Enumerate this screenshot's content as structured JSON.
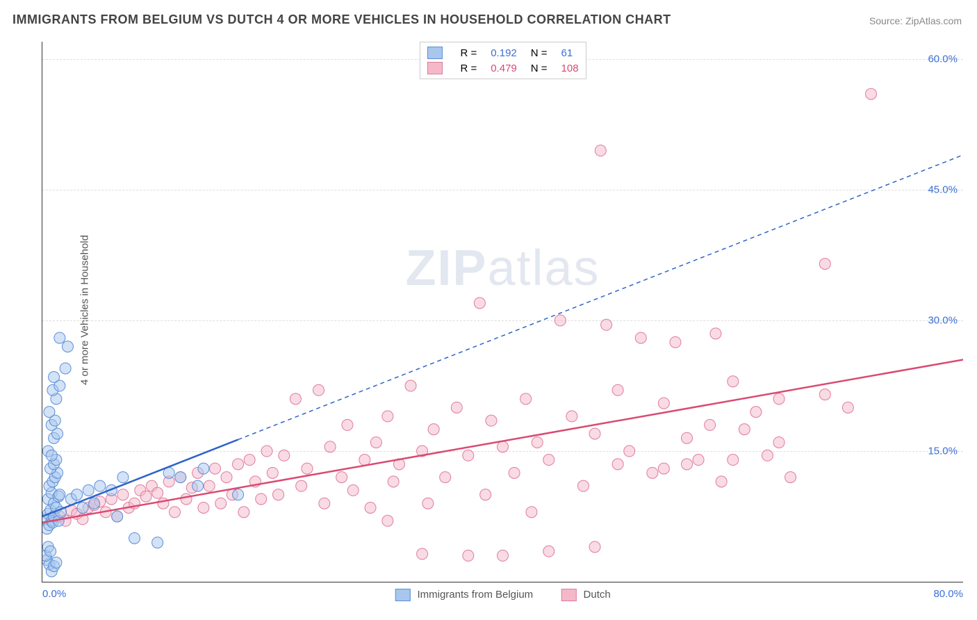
{
  "title": "IMMIGRANTS FROM BELGIUM VS DUTCH 4 OR MORE VEHICLES IN HOUSEHOLD CORRELATION CHART",
  "source_label": "Source:",
  "source_name": "ZipAtlas.com",
  "ylabel": "4 or more Vehicles in Household",
  "watermark_bold": "ZIP",
  "watermark_rest": "atlas",
  "chart": {
    "type": "scatter",
    "background_color": "#ffffff",
    "grid_color": "#dddddd",
    "axis_color": "#333333",
    "tick_color": "#3b6fd6",
    "xlim": [
      0,
      80
    ],
    "ylim": [
      0,
      62
    ],
    "xticks": [
      {
        "value": 0,
        "label": "0.0%"
      },
      {
        "value": 80,
        "label": "80.0%"
      }
    ],
    "yticks": [
      {
        "value": 15,
        "label": "15.0%"
      },
      {
        "value": 30,
        "label": "30.0%"
      },
      {
        "value": 45,
        "label": "45.0%"
      },
      {
        "value": 60,
        "label": "60.0%"
      }
    ],
    "marker_radius": 8,
    "marker_opacity": 0.5,
    "series": [
      {
        "name": "Immigrants from Belgium",
        "key": "belgium",
        "color_fill": "#a8c6ee",
        "color_stroke": "#5a8fd6",
        "line_color": "#2e63c8",
        "line_width": 2.5,
        "line_dash_after_x": 17,
        "R_label": "R =",
        "R": "0.192",
        "N_label": "N =",
        "N": "61",
        "regression": {
          "x1": 0,
          "y1": 7.5,
          "x2": 80,
          "y2": 49
        },
        "points": [
          [
            0.3,
            7.2
          ],
          [
            0.4,
            6.1
          ],
          [
            0.5,
            7.8
          ],
          [
            0.6,
            6.5
          ],
          [
            0.7,
            8.2
          ],
          [
            0.8,
            7.0
          ],
          [
            0.9,
            6.8
          ],
          [
            1.0,
            7.5
          ],
          [
            0.4,
            2.5
          ],
          [
            0.6,
            2.0
          ],
          [
            0.8,
            1.2
          ],
          [
            1.0,
            1.8
          ],
          [
            1.2,
            2.2
          ],
          [
            0.3,
            3.0
          ],
          [
            0.5,
            4.0
          ],
          [
            0.7,
            3.5
          ],
          [
            0.5,
            9.5
          ],
          [
            0.8,
            10.2
          ],
          [
            1.0,
            9.0
          ],
          [
            1.2,
            8.5
          ],
          [
            1.4,
            9.8
          ],
          [
            0.6,
            11.0
          ],
          [
            0.9,
            11.5
          ],
          [
            1.1,
            12.0
          ],
          [
            1.3,
            12.5
          ],
          [
            0.7,
            13.0
          ],
          [
            1.0,
            13.5
          ],
          [
            1.2,
            14.0
          ],
          [
            0.5,
            15.0
          ],
          [
            0.8,
            14.5
          ],
          [
            1.5,
            10.0
          ],
          [
            1.0,
            16.5
          ],
          [
            1.3,
            17.0
          ],
          [
            0.8,
            18.0
          ],
          [
            1.1,
            18.5
          ],
          [
            0.6,
            19.5
          ],
          [
            1.4,
            7.0
          ],
          [
            1.6,
            8.0
          ],
          [
            1.2,
            21.0
          ],
          [
            0.9,
            22.0
          ],
          [
            1.5,
            22.5
          ],
          [
            1.0,
            23.5
          ],
          [
            2.0,
            24.5
          ],
          [
            2.2,
            27.0
          ],
          [
            1.5,
            28.0
          ],
          [
            2.5,
            9.5
          ],
          [
            3.0,
            10.0
          ],
          [
            3.5,
            8.5
          ],
          [
            4.0,
            10.5
          ],
          [
            4.5,
            9.0
          ],
          [
            5.0,
            11.0
          ],
          [
            6.0,
            10.5
          ],
          [
            6.5,
            7.5
          ],
          [
            7.0,
            12.0
          ],
          [
            8.0,
            5.0
          ],
          [
            10.0,
            4.5
          ],
          [
            11.0,
            12.5
          ],
          [
            12.0,
            12.0
          ],
          [
            13.5,
            11.0
          ],
          [
            14.0,
            13.0
          ],
          [
            17.0,
            10.0
          ]
        ]
      },
      {
        "name": "Dutch",
        "key": "dutch",
        "color_fill": "#f4b8c9",
        "color_stroke": "#e07a9c",
        "line_color": "#d94a72",
        "line_width": 2.5,
        "line_dash_after_x": 999,
        "R_label": "R =",
        "R": "0.479",
        "N_label": "N =",
        "N": "108",
        "regression": {
          "x1": 0,
          "y1": 6.8,
          "x2": 80,
          "y2": 25.5
        },
        "points": [
          [
            1.5,
            7.5
          ],
          [
            2.0,
            7.0
          ],
          [
            2.5,
            8.2
          ],
          [
            3.0,
            7.8
          ],
          [
            3.5,
            7.2
          ],
          [
            4.0,
            8.5
          ],
          [
            4.5,
            8.8
          ],
          [
            5.0,
            9.2
          ],
          [
            5.5,
            8.0
          ],
          [
            6.0,
            9.5
          ],
          [
            6.5,
            7.5
          ],
          [
            7.0,
            10.0
          ],
          [
            7.5,
            8.5
          ],
          [
            8.0,
            9.0
          ],
          [
            8.5,
            10.5
          ],
          [
            9.0,
            9.8
          ],
          [
            9.5,
            11.0
          ],
          [
            10.0,
            10.2
          ],
          [
            10.5,
            9.0
          ],
          [
            11.0,
            11.5
          ],
          [
            11.5,
            8.0
          ],
          [
            12.0,
            12.0
          ],
          [
            12.5,
            9.5
          ],
          [
            13.0,
            10.8
          ],
          [
            13.5,
            12.5
          ],
          [
            14.0,
            8.5
          ],
          [
            14.5,
            11.0
          ],
          [
            15.0,
            13.0
          ],
          [
            15.5,
            9.0
          ],
          [
            16.0,
            12.0
          ],
          [
            16.5,
            10.0
          ],
          [
            17.0,
            13.5
          ],
          [
            17.5,
            8.0
          ],
          [
            18.0,
            14.0
          ],
          [
            18.5,
            11.5
          ],
          [
            19.0,
            9.5
          ],
          [
            19.5,
            15.0
          ],
          [
            20.0,
            12.5
          ],
          [
            20.5,
            10.0
          ],
          [
            21.0,
            14.5
          ],
          [
            22.0,
            21.0
          ],
          [
            22.5,
            11.0
          ],
          [
            23.0,
            13.0
          ],
          [
            24.0,
            22.0
          ],
          [
            24.5,
            9.0
          ],
          [
            25.0,
            15.5
          ],
          [
            26.0,
            12.0
          ],
          [
            26.5,
            18.0
          ],
          [
            27.0,
            10.5
          ],
          [
            28.0,
            14.0
          ],
          [
            28.5,
            8.5
          ],
          [
            29.0,
            16.0
          ],
          [
            30.0,
            19.0
          ],
          [
            30.5,
            11.5
          ],
          [
            31.0,
            13.5
          ],
          [
            32.0,
            22.5
          ],
          [
            33.0,
            15.0
          ],
          [
            33.5,
            9.0
          ],
          [
            34.0,
            17.5
          ],
          [
            35.0,
            12.0
          ],
          [
            36.0,
            20.0
          ],
          [
            37.0,
            14.5
          ],
          [
            38.0,
            32.0
          ],
          [
            38.5,
            10.0
          ],
          [
            39.0,
            18.5
          ],
          [
            40.0,
            15.5
          ],
          [
            41.0,
            12.5
          ],
          [
            42.0,
            21.0
          ],
          [
            42.5,
            8.0
          ],
          [
            43.0,
            16.0
          ],
          [
            44.0,
            14.0
          ],
          [
            45.0,
            30.0
          ],
          [
            46.0,
            19.0
          ],
          [
            47.0,
            11.0
          ],
          [
            48.0,
            17.0
          ],
          [
            48.5,
            49.5
          ],
          [
            49.0,
            29.5
          ],
          [
            50.0,
            22.0
          ],
          [
            51.0,
            15.0
          ],
          [
            52.0,
            28.0
          ],
          [
            53.0,
            12.5
          ],
          [
            54.0,
            20.5
          ],
          [
            55.0,
            27.5
          ],
          [
            56.0,
            16.5
          ],
          [
            57.0,
            14.0
          ],
          [
            58.0,
            18.0
          ],
          [
            58.5,
            28.5
          ],
          [
            59.0,
            11.5
          ],
          [
            60.0,
            23.0
          ],
          [
            61.0,
            17.5
          ],
          [
            62.0,
            19.5
          ],
          [
            63.0,
            14.5
          ],
          [
            64.0,
            16.0
          ],
          [
            65.0,
            12.0
          ],
          [
            40.0,
            3.0
          ],
          [
            44.0,
            3.5
          ],
          [
            48.0,
            4.0
          ],
          [
            68.0,
            36.5
          ],
          [
            70.0,
            20.0
          ],
          [
            72.0,
            56.0
          ],
          [
            68.0,
            21.5
          ],
          [
            33.0,
            3.2
          ],
          [
            37.0,
            3.0
          ],
          [
            54.0,
            13.0
          ],
          [
            56.0,
            13.5
          ],
          [
            60.0,
            14.0
          ],
          [
            64.0,
            21.0
          ],
          [
            50.0,
            13.5
          ],
          [
            30.0,
            7.0
          ]
        ]
      }
    ]
  },
  "legend_bottom": {
    "items": [
      "Immigrants from Belgium",
      "Dutch"
    ]
  }
}
